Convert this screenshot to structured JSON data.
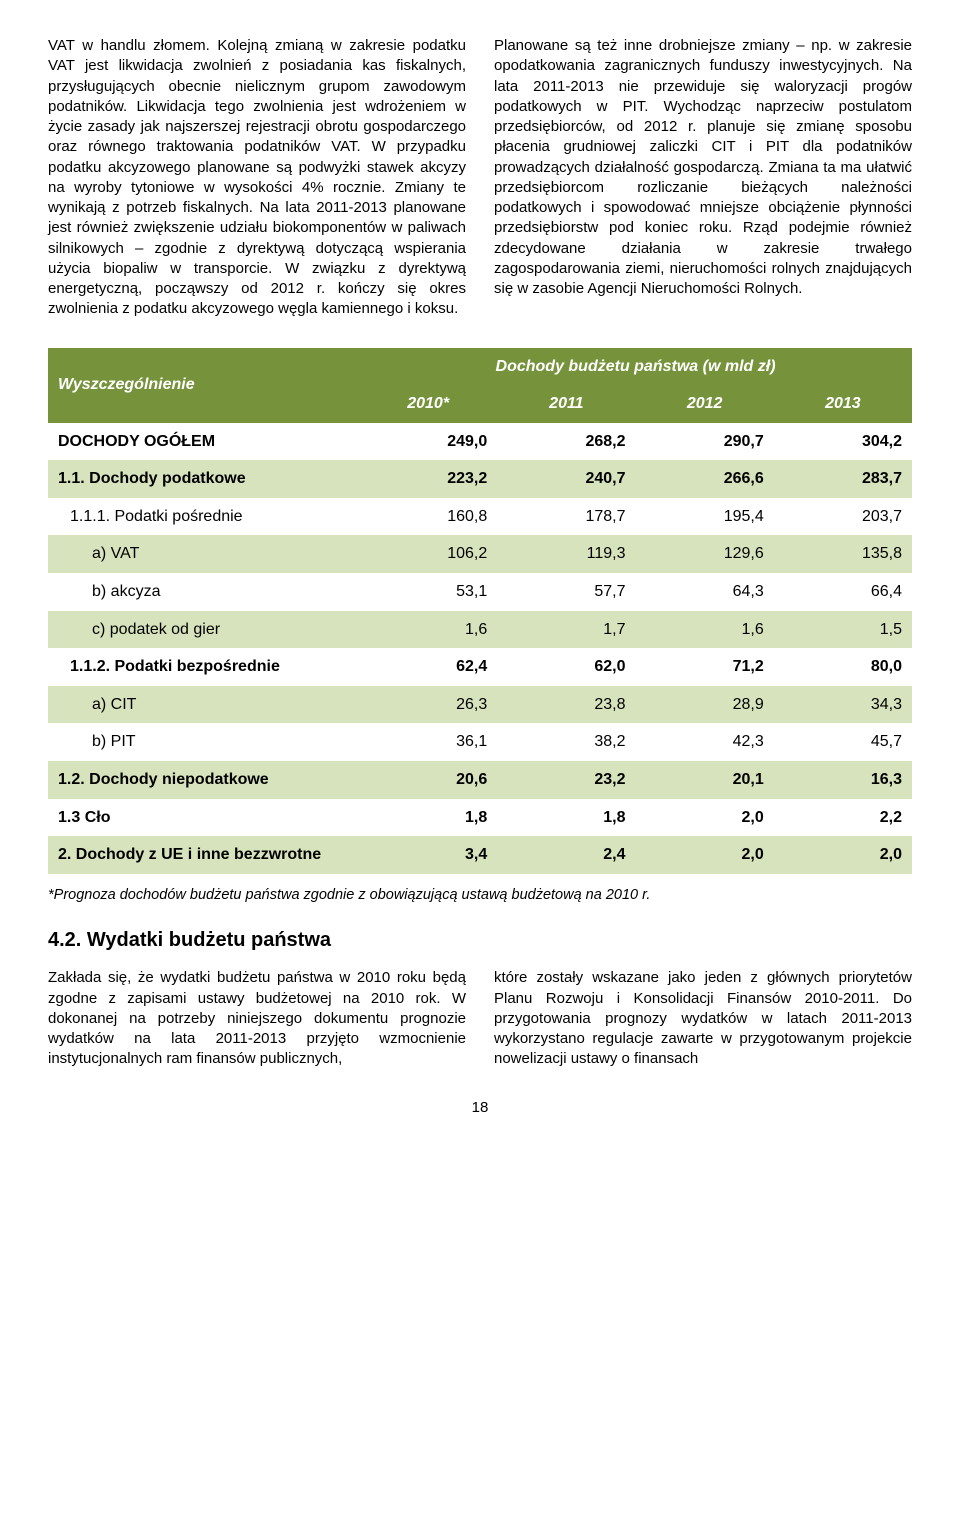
{
  "columns": {
    "left_para": "VAT w handlu złomem. Kolejną zmianą w zakresie podatku VAT jest likwidacja zwolnień z posiadania kas fiskalnych, przysługujących obecnie nielicznym grupom zawodowym podatników. Likwidacja tego zwolnienia jest wdrożeniem w życie zasady jak najszerszej rejestracji obrotu gospodarczego oraz równego traktowania podatników VAT. W przypadku podatku akcyzowego planowane są podwyżki stawek akcyzy na wyroby tytoniowe w wysokości 4% rocznie. Zmiany te wynikają z potrzeb fiskalnych. Na lata 2011-2013 planowane jest również zwiększenie udziału biokomponentów w paliwach silnikowych – zgodnie z dyrektywą dotyczącą wspierania użycia biopaliw w transporcie. W związku z dyrektywą energetyczną, począwszy od 2012 r. kończy się okres zwolnienia z podatku akcyzowego węgla kamiennego i koksu.",
    "right_para": "Planowane są też inne drobniejsze zmiany – np. w zakresie opodatkowania zagranicznych funduszy inwestycyjnych. Na lata 2011-2013 nie przewiduje się waloryzacji progów podatkowych w PIT. Wychodząc naprzeciw postulatom przedsiębiorców, od 2012 r. planuje się zmianę sposobu płacenia grudniowej zaliczki CIT i PIT dla podatników prowadzących działalność gospodarczą. Zmiana ta ma ułatwić przedsiębiorcom rozliczanie bieżących należności podatkowych i spowodować mniejsze obciążenie płynności przedsiębiorstw pod koniec roku. Rząd podejmie również zdecydowane działania w zakresie trwałego zagospodarowania ziemi, nieruchomości rolnych znajdujących się w zasobie Agencji Nieruchomości Rolnych."
  },
  "table": {
    "header_left": "Wyszczególnienie",
    "header_right": "Dochody budżetu państwa (w mld zł)",
    "years": [
      "2010*",
      "2011",
      "2012",
      "2013"
    ],
    "rows": [
      {
        "label": "DOCHODY OGÓŁEM",
        "vals": [
          "249,0",
          "268,2",
          "290,7",
          "304,2"
        ],
        "shade": false,
        "bold": true,
        "indent": 0
      },
      {
        "label": "1.1. Dochody podatkowe",
        "vals": [
          "223,2",
          "240,7",
          "266,6",
          "283,7"
        ],
        "shade": true,
        "bold": true,
        "indent": 0
      },
      {
        "label": "1.1.1. Podatki pośrednie",
        "vals": [
          "160,8",
          "178,7",
          "195,4",
          "203,7"
        ],
        "shade": false,
        "bold": false,
        "indent": 1
      },
      {
        "label": "a) VAT",
        "vals": [
          "106,2",
          "119,3",
          "129,6",
          "135,8"
        ],
        "shade": true,
        "bold": false,
        "indent": 2
      },
      {
        "label": "b) akcyza",
        "vals": [
          "53,1",
          "57,7",
          "64,3",
          "66,4"
        ],
        "shade": false,
        "bold": false,
        "indent": 2
      },
      {
        "label": "c) podatek od gier",
        "vals": [
          "1,6",
          "1,7",
          "1,6",
          "1,5"
        ],
        "shade": true,
        "bold": false,
        "indent": 2
      },
      {
        "label": "1.1.2. Podatki bezpośrednie",
        "vals": [
          "62,4",
          "62,0",
          "71,2",
          "80,0"
        ],
        "shade": false,
        "bold": true,
        "indent": 1
      },
      {
        "label": "a) CIT",
        "vals": [
          "26,3",
          "23,8",
          "28,9",
          "34,3"
        ],
        "shade": true,
        "bold": false,
        "indent": 2
      },
      {
        "label": "b) PIT",
        "vals": [
          "36,1",
          "38,2",
          "42,3",
          "45,7"
        ],
        "shade": false,
        "bold": false,
        "indent": 2
      },
      {
        "label": "1.2. Dochody niepodatkowe",
        "vals": [
          "20,6",
          "23,2",
          "20,1",
          "16,3"
        ],
        "shade": true,
        "bold": true,
        "indent": 0
      },
      {
        "label": "1.3 Cło",
        "vals": [
          "1,8",
          "1,8",
          "2,0",
          "2,2"
        ],
        "shade": false,
        "bold": true,
        "indent": 0
      },
      {
        "label": "2. Dochody z UE i inne bezzwrotne",
        "vals": [
          "3,4",
          "2,4",
          "2,0",
          "2,0"
        ],
        "shade": true,
        "bold": true,
        "indent": 0
      }
    ]
  },
  "footnote": "*Prognoza dochodów budżetu państwa zgodnie z obowiązującą ustawą budżetową na 2010 r.",
  "section_heading": "4.2. Wydatki budżetu państwa",
  "bottom": {
    "left": "Zakłada się, że wydatki budżetu państwa w 2010 roku będą zgodne z zapisami ustawy budżetowej na 2010 rok. W dokonanej na potrzeby niniejszego dokumentu prognozie wydatków na lata 2011-2013 przyjęto wzmocnienie instytucjonalnych ram finansów publicznych,",
    "right": "które zostały wskazane jako jeden z głównych priorytetów Planu Rozwoju i Konsolidacji Finansów 2010-2011. Do przygotowania prognozy wydatków w latach 2011-2013 wykorzystano regulacje zawarte w przygotowanym projekcie nowelizacji ustawy o finansach"
  },
  "page_number": "18",
  "colors": {
    "header_bg": "#76933c",
    "shade_bg": "#d7e3bc"
  }
}
